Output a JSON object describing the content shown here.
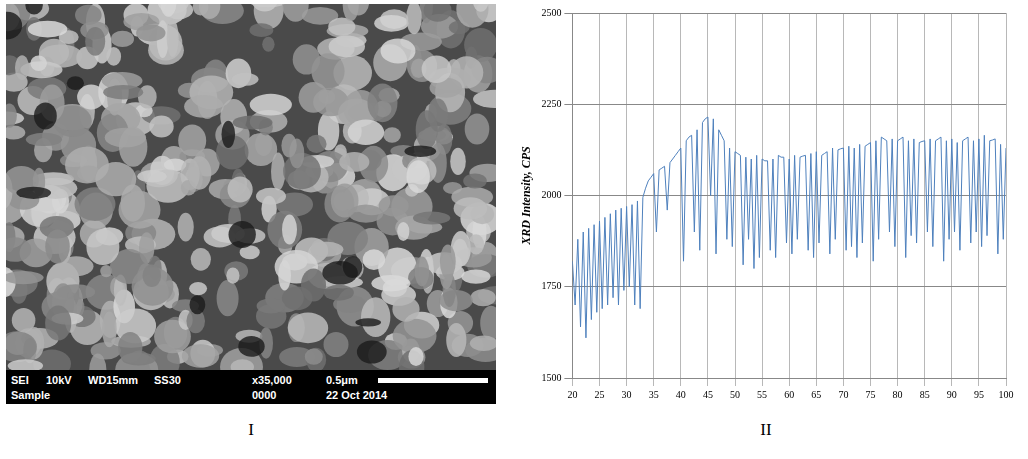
{
  "panel_labels": [
    "I",
    "II"
  ],
  "micrograph": {
    "info_bar": {
      "row1": [
        "SEI",
        "10kV",
        "WD15mm",
        "SS30",
        "x35,000",
        "0.5μm"
      ],
      "row2": [
        "Sample",
        "0000",
        "22 Oct 2014"
      ]
    }
  },
  "chart_data": {
    "type": "line",
    "y_label": "XRD Intensity, CPS",
    "color": "#4f81bd",
    "grid": true,
    "xlim": [
      20,
      100
    ],
    "xticks": [
      20,
      25,
      30,
      35,
      40,
      45,
      50,
      55,
      60,
      65,
      70,
      75,
      80,
      85,
      90,
      95,
      100
    ],
    "ylim": [
      1500,
      2500
    ],
    "yticks": [
      1500,
      1750,
      2000,
      2250,
      2500
    ],
    "x": [
      20,
      20.5,
      21,
      21.5,
      22,
      22.5,
      23,
      23.5,
      24,
      24.5,
      25,
      25.5,
      26,
      26.5,
      27,
      27.5,
      28,
      28.5,
      29,
      29.5,
      30,
      30.5,
      31,
      31.5,
      32,
      32.5,
      33,
      33.5,
      34,
      34.5,
      35,
      35.5,
      36,
      36.5,
      37,
      37.5,
      38,
      38.5,
      39,
      39.5,
      40,
      40.5,
      41,
      41.5,
      42,
      42.5,
      43,
      43.5,
      44,
      44.5,
      45,
      45.5,
      46,
      46.5,
      47,
      47.5,
      48,
      48.5,
      49,
      49.5,
      50,
      50.5,
      51,
      51.5,
      52,
      52.5,
      53,
      53.5,
      54,
      54.5,
      55,
      55.5,
      56,
      56.5,
      57,
      57.5,
      58,
      58.5,
      59,
      59.5,
      60,
      60.5,
      61,
      61.5,
      62,
      62.5,
      63,
      63.5,
      64,
      64.5,
      65,
      65.5,
      66,
      66.5,
      67,
      67.5,
      68,
      68.5,
      69,
      69.5,
      70,
      70.5,
      71,
      71.5,
      72,
      72.5,
      73,
      73.5,
      74,
      74.5,
      75,
      75.5,
      76,
      76.5,
      77,
      77.5,
      78,
      78.5,
      79,
      79.5,
      80,
      80.5,
      81,
      81.5,
      82,
      82.5,
      83,
      83.5,
      84,
      84.5,
      85,
      85.5,
      86,
      86.5,
      87,
      87.5,
      88,
      88.5,
      89,
      89.5,
      90,
      90.5,
      91,
      91.5,
      92,
      92.5,
      93,
      93.5,
      94,
      94.5,
      95,
      95.5,
      96,
      96.5,
      97,
      97.5,
      98,
      98.5,
      99,
      99.5,
      100
    ],
    "values": [
      1820,
      1700,
      1880,
      1640,
      1900,
      1610,
      1910,
      1660,
      1920,
      1680,
      1930,
      1690,
      1940,
      1700,
      1950,
      1720,
      1960,
      1700,
      1965,
      1740,
      1970,
      1750,
      1975,
      1700,
      1985,
      1690,
      1995,
      2020,
      2040,
      2050,
      2060,
      1900,
      2070,
      2075,
      2080,
      1960,
      2090,
      2100,
      2110,
      2120,
      2130,
      1820,
      2150,
      2160,
      2165,
      1900,
      2180,
      1850,
      2200,
      2210,
      2215,
      2000,
      2210,
      1840,
      2180,
      2165,
      2150,
      1880,
      2130,
      1860,
      2120,
      2115,
      2110,
      1810,
      2105,
      1880,
      2100,
      1800,
      2110,
      1830,
      2100,
      2095,
      2095,
      1850,
      2100,
      1830,
      2110,
      2105,
      2105,
      1870,
      2100,
      1840,
      2110,
      1880,
      2105,
      2108,
      2110,
      1850,
      2115,
      1830,
      2120,
      1870,
      2110,
      2115,
      2120,
      1840,
      2130,
      1880,
      2125,
      2128,
      2130,
      1850,
      2135,
      1860,
      2130,
      1830,
      2140,
      1870,
      2135,
      2140,
      2145,
      1820,
      2150,
      1880,
      2160,
      2155,
      2150,
      1900,
      2155,
      1860,
      2150,
      2155,
      2160,
      1830,
      2150,
      1890,
      2155,
      1870,
      2145,
      2148,
      2150,
      1900,
      2155,
      1860,
      2150,
      2155,
      2160,
      1820,
      2150,
      1880,
      2155,
      1900,
      2145,
      1850,
      2150,
      2155,
      2160,
      1870,
      2150,
      1900,
      2155,
      1860,
      2165,
      1890,
      2150,
      2152,
      2155,
      1840,
      2140,
      1880,
      2130
    ]
  }
}
